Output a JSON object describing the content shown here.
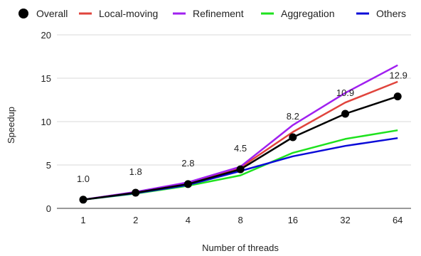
{
  "chart_data": {
    "type": "line",
    "title": "",
    "xlabel": "Number of threads",
    "ylabel": "Speedup",
    "categories": [
      "1",
      "2",
      "4",
      "8",
      "16",
      "32",
      "64"
    ],
    "ylim": [
      0,
      20
    ],
    "yticks": [
      0,
      5,
      10,
      15,
      20
    ],
    "grid": "horizontal",
    "legend_position": "top",
    "series": [
      {
        "name": "Overall",
        "color": "#000000",
        "markers": true,
        "values": [
          1.0,
          1.8,
          2.8,
          4.5,
          8.2,
          10.9,
          12.9
        ],
        "labels": [
          "1.0",
          "1.8",
          "2.8",
          "4.5",
          "8.2",
          "10.9",
          "12.9"
        ]
      },
      {
        "name": "Local-moving",
        "color": "#e0443c",
        "values": [
          1.0,
          1.85,
          2.9,
          4.7,
          8.8,
          12.2,
          14.6
        ]
      },
      {
        "name": "Refinement",
        "color": "#a020f0",
        "values": [
          1.0,
          1.9,
          3.0,
          4.8,
          9.6,
          13.3,
          16.5
        ]
      },
      {
        "name": "Aggregation",
        "color": "#1ee21e",
        "values": [
          1.0,
          1.7,
          2.6,
          3.8,
          6.4,
          8.0,
          9.0
        ]
      },
      {
        "name": "Others",
        "color": "#0a0ad8",
        "values": [
          1.0,
          1.75,
          2.7,
          4.3,
          6.0,
          7.2,
          8.1
        ]
      }
    ]
  }
}
